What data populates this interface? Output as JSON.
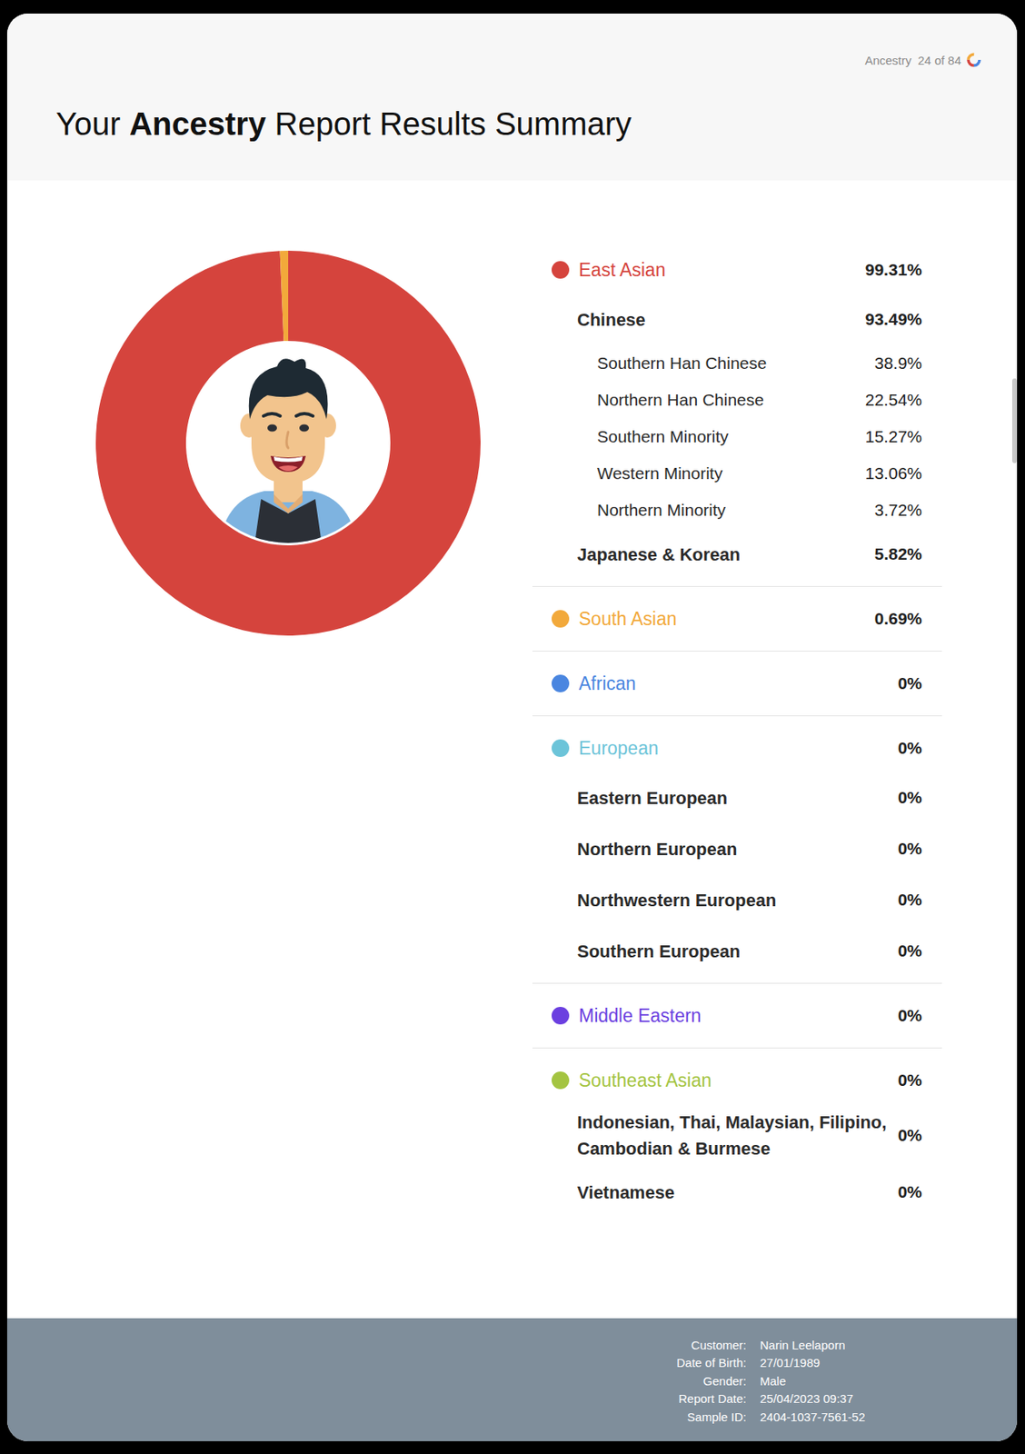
{
  "header": {
    "section": "Ancestry",
    "page": "24 of 84",
    "title": [
      {
        "text": "Your "
      },
      {
        "text": "Ancestry",
        "bold": true
      },
      {
        "text": " Report Results Summary"
      }
    ]
  },
  "chart_data": {
    "type": "donut",
    "categories": [
      "East Asian",
      "South Asian",
      "African",
      "European",
      "Middle Eastern",
      "Southeast Asian"
    ],
    "values": [
      99.31,
      0.69,
      0,
      0,
      0,
      0
    ],
    "value_labels": [
      "99.31%",
      "0.69%",
      "0%",
      "0%",
      "0%",
      "0%"
    ],
    "colors": [
      "#d5443d",
      "#f2a93b",
      "#4a86e0",
      "#6cc4d9",
      "#6b3fe0",
      "#a4c441"
    ],
    "subgroups": [
      [
        {
          "name": "Chinese",
          "value": 93.49,
          "label": "93.49%",
          "items": [
            {
              "name": "Southern Han Chinese",
              "value": 38.9,
              "label": "38.9%"
            },
            {
              "name": "Northern Han Chinese",
              "value": 22.54,
              "label": "22.54%"
            },
            {
              "name": "Southern Minority",
              "value": 15.27,
              "label": "15.27%"
            },
            {
              "name": "Western Minority",
              "value": 13.06,
              "label": "13.06%"
            },
            {
              "name": "Northern Minority",
              "value": 3.72,
              "label": "3.72%"
            }
          ]
        },
        {
          "name": "Japanese & Korean",
          "value": 5.82,
          "label": "5.82%",
          "items": []
        }
      ],
      [],
      [],
      [
        {
          "name": "Eastern European",
          "value": 0,
          "label": "0%",
          "items": []
        },
        {
          "name": "Northern European",
          "value": 0,
          "label": "0%",
          "items": []
        },
        {
          "name": "Northwestern European",
          "value": 0,
          "label": "0%",
          "items": []
        },
        {
          "name": "Southern European",
          "value": 0,
          "label": "0%",
          "items": []
        }
      ],
      [],
      [
        {
          "name": "Indonesian, Thai, Malaysian, Filipino, Cambodian & Burmese",
          "value": 0,
          "label": "0%",
          "items": []
        },
        {
          "name": "Vietnamese",
          "value": 0,
          "label": "0%",
          "items": []
        }
      ]
    ]
  },
  "footer": {
    "fields": [
      {
        "label": "Customer:",
        "value": "Narin Leelaporn"
      },
      {
        "label": "Date of Birth:",
        "value": "27/01/1989"
      },
      {
        "label": "Gender:",
        "value": "Male"
      },
      {
        "label": "Report Date:",
        "value": "25/04/2023 09:37"
      },
      {
        "label": "Sample ID:",
        "value": "2404-1037-7561-52"
      }
    ]
  }
}
